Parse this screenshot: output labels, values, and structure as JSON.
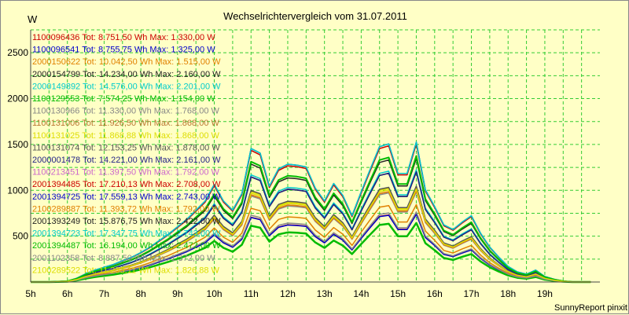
{
  "chart_data": {
    "type": "line",
    "title": "Wechselrichtervergleich vom 31.07.2011",
    "ylabel": "W",
    "xlabel": "",
    "footer": "SunnyReport pinxit",
    "xlim": [
      5,
      20.5
    ],
    "ylim": [
      0,
      2750
    ],
    "grid": true,
    "legend_placement": "top-left",
    "x_ticks": [
      "5h",
      "6h",
      "7h",
      "8h",
      "9h",
      "10h",
      "11h",
      "12h",
      "13h",
      "14h",
      "15h",
      "16h",
      "17h",
      "18h",
      "19h"
    ],
    "y_ticks": [
      "500",
      "1000",
      "1500",
      "2000",
      "2500"
    ],
    "x": [
      5.0,
      5.5,
      6.0,
      6.25,
      6.5,
      6.75,
      7.0,
      7.25,
      7.5,
      7.75,
      8.0,
      8.25,
      8.5,
      8.75,
      9.0,
      9.25,
      9.5,
      9.75,
      10.0,
      10.25,
      10.5,
      10.75,
      11.0,
      11.25,
      11.5,
      11.75,
      12.0,
      12.25,
      12.5,
      12.75,
      13.0,
      13.25,
      13.5,
      13.75,
      14.0,
      14.25,
      14.5,
      14.75,
      15.0,
      15.25,
      15.5,
      15.75,
      16.0,
      16.25,
      16.5,
      16.75,
      17.0,
      17.25,
      17.5,
      17.75,
      18.0,
      18.25,
      18.5,
      18.75,
      19.0,
      19.25,
      19.5,
      19.75,
      20.0,
      20.25
    ],
    "base_profile": [
      0,
      0,
      10,
      40,
      90,
      130,
      160,
      190,
      230,
      270,
      320,
      380,
      450,
      520,
      600,
      680,
      780,
      880,
      1060,
      880,
      780,
      960,
      1450,
      1400,
      1040,
      1230,
      1280,
      1270,
      1250,
      1020,
      880,
      1070,
      940,
      720,
      980,
      1230,
      1470,
      1500,
      1180,
      1180,
      1520,
      1000,
      820,
      620,
      570,
      650,
      720,
      530,
      380,
      270,
      170,
      110,
      85,
      130,
      60,
      30,
      10,
      0,
      0,
      0
    ],
    "series": [
      {
        "name": "1100096436",
        "text": "Tot: 8.751,50 Wh Max: 1.330,00 W",
        "color": "#cc0000",
        "scale": 0.487,
        "width": 1.5
      },
      {
        "name": "1100096541",
        "text": "Tot: 8.755,75 Wh Max: 1.325,00 W",
        "color": "#0000cc",
        "scale": 0.485,
        "width": 1.5
      },
      {
        "name": "2000150622",
        "text": "Tot: 10.042,50 Wh Max: 1.515,00 W",
        "color": "#e08000",
        "scale": 0.555,
        "width": 1.5
      },
      {
        "name": "2000154799",
        "text": "Tot: 14.234,00 Wh Max: 2.160,00 W",
        "color": "#222222",
        "scale": 0.79,
        "width": 1.5
      },
      {
        "name": "2000149892",
        "text": "Tot: 14.576,00 Wh Max: 2.201,00 W",
        "color": "#00cccc",
        "scale": 0.806,
        "width": 1.5
      },
      {
        "name": "1100129553",
        "text": "Tot: 7.574,25 Wh Max: 1.154,00 W",
        "color": "#00bb00",
        "scale": 0.423,
        "width": 2.5
      },
      {
        "name": "1100130966",
        "text": "Tot: 11.330,00 Wh Max: 1.768,00 W",
        "color": "#888888",
        "scale": 0.647,
        "width": 1.5
      },
      {
        "name": "1100131006",
        "text": "Tot: 11.926,50 Wh Max: 1.868,00 W",
        "color": "#bb7733",
        "scale": 0.684,
        "width": 1.5
      },
      {
        "name": "1100131025",
        "text": "Tot: 11.868,88 Wh Max: 1.868,00 W",
        "color": "#dddd00",
        "scale": 0.68,
        "width": 1.5
      },
      {
        "name": "1100131074",
        "text": "Tot: 12.153,25 Wh Max: 1.878,00 W",
        "color": "#555555",
        "scale": 0.688,
        "width": 1.5
      },
      {
        "name": "2000001478",
        "text": "Tot: 14.221,00 Wh Max: 2.161,00 W",
        "color": "#222288",
        "scale": 0.791,
        "width": 1.5
      },
      {
        "name": "1100213451",
        "text": "Tot: 11.397,50 Wh Max: 1.792,00 W",
        "color": "#cc66cc",
        "scale": 0.656,
        "width": 1.5
      },
      {
        "name": "2001394485",
        "text": "Tot: 17.210,13 Wh Max: 2.708,00 W",
        "color": "#cc0000",
        "scale": 0.99,
        "width": 1.5
      },
      {
        "name": "2001394725",
        "text": "Tot: 17.559,13 Wh Max: 2.743,00 W",
        "color": "#0000cc",
        "scale": 1.004,
        "width": 1.5
      },
      {
        "name": "2100289887",
        "text": "Tot: 11.393,72 Wh Max: 1.792,00 W",
        "color": "#e08000",
        "scale": 0.656,
        "width": 1.5
      },
      {
        "name": "2001393249",
        "text": "Tot: 15.876,75 Wh Max: 2.422,00 W",
        "color": "#222222",
        "scale": 0.887,
        "width": 1.5
      },
      {
        "name": "2001394723",
        "text": "Tot: 17.347,75 Wh Max: 2.743,00 W",
        "color": "#00cccc",
        "scale": 1.004,
        "width": 1.5
      },
      {
        "name": "2001394487",
        "text": "Tot: 16.194,00 Wh Max: 2.472,00 W",
        "color": "#00bb00",
        "scale": 0.905,
        "width": 2.0
      },
      {
        "name": "2001102358",
        "text": "Tot: 8.887,50 Wh Max: 1.372,00 W",
        "color": "#888888",
        "scale": 0.502,
        "width": 1.5
      },
      {
        "name": "2100289522",
        "text": "Tot: 11.233,11 Wh Max: 1.826,88 W",
        "color": "#dddd00",
        "scale": 0.669,
        "width": 1.5
      }
    ]
  }
}
